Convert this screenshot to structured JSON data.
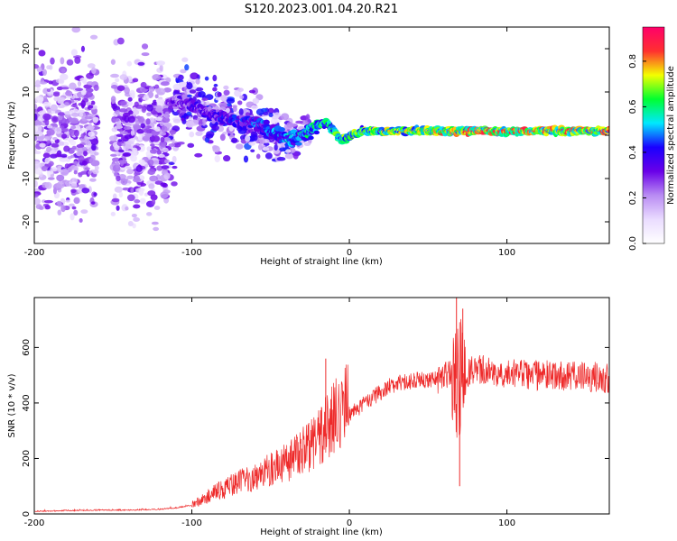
{
  "figure": {
    "title": "S120.2023.001.04.20.R21"
  },
  "colors": {
    "colormap": [
      "#ffffff",
      "#eadcff",
      "#b98cf3",
      "#6a00e8",
      "#1a00ff",
      "#00e8ff",
      "#00ff30",
      "#f4ff00",
      "#ff3030",
      "#ff006a"
    ],
    "snr_line": "#ee2a2a"
  },
  "chart_data": [
    {
      "type": "heatmap",
      "title": "",
      "xlabel": "Height of straight line (km)",
      "ylabel": "Frequency (Hz)",
      "xlim": [
        -200,
        165
      ],
      "ylim": [
        -25,
        25
      ],
      "x_ticks": [
        -200,
        -100,
        0,
        100
      ],
      "x_tick_labels": [
        "-200",
        "-100",
        "0",
        "100"
      ],
      "y_ticks": [
        20,
        10,
        0,
        -10,
        -20
      ],
      "y_tick_labels": [
        "20",
        "10",
        "0",
        "-10",
        "-20"
      ],
      "colorbar": {
        "label": "Normalized spectral amplitude",
        "range": [
          0,
          0.95
        ],
        "ticks": [
          0.0,
          0.2,
          0.4,
          0.6,
          0.8
        ],
        "tick_labels": [
          "0.0",
          "0.2",
          "0.4",
          "0.6",
          "0.8"
        ]
      },
      "ridge": {
        "x": [
          -160,
          -140,
          -120,
          -110,
          -100,
          -90,
          -80,
          -70,
          -60,
          -50,
          -40,
          -35,
          -30,
          -25,
          -20,
          -15,
          -12,
          -8,
          -5,
          0,
          10,
          20,
          40,
          60,
          80,
          100,
          120,
          140,
          165
        ],
        "y": [
          8,
          7,
          7,
          8,
          7,
          5,
          4,
          3,
          3,
          1,
          -1,
          -1,
          0,
          1,
          2,
          3,
          2,
          0,
          -1,
          0,
          1,
          1,
          1,
          1,
          1,
          1,
          1,
          1,
          1
        ],
        "amplitude": [
          0.2,
          0.2,
          0.3,
          0.35,
          0.4,
          0.4,
          0.45,
          0.45,
          0.5,
          0.55,
          0.6,
          0.6,
          0.62,
          0.65,
          0.68,
          0.7,
          0.7,
          0.7,
          0.72,
          0.72,
          0.75,
          0.78,
          0.82,
          0.85,
          0.88,
          0.9,
          0.9,
          0.9,
          0.85
        ]
      }
    },
    {
      "type": "line",
      "title": "",
      "xlabel": "Height of straight line (km)",
      "ylabel": "SNR (10 * v/v)",
      "xlim": [
        -200,
        165
      ],
      "ylim": [
        0,
        780
      ],
      "x_ticks": [
        -200,
        -100,
        0,
        100
      ],
      "x_tick_labels": [
        "-200",
        "-100",
        "0",
        "100"
      ],
      "y_ticks": [
        0,
        200,
        400,
        600
      ],
      "y_tick_labels": [
        "0",
        "200",
        "400",
        "600"
      ],
      "series": [
        {
          "x": [
            -200,
            -180,
            -160,
            -140,
            -120,
            -110,
            -100,
            -95,
            -90,
            -85,
            -80,
            -75,
            -70,
            -65,
            -60,
            -55,
            -50,
            -45,
            -40,
            -35,
            -30,
            -25,
            -20,
            -15,
            -10,
            -5,
            0,
            5,
            10,
            15,
            20,
            25,
            30,
            40,
            50,
            60,
            65,
            70,
            75,
            80,
            90,
            100,
            110,
            120,
            130,
            140,
            150,
            165
          ],
          "y": [
            8,
            10,
            12,
            12,
            15,
            20,
            30,
            40,
            55,
            70,
            80,
            90,
            100,
            110,
            120,
            130,
            140,
            150,
            165,
            180,
            200,
            220,
            240,
            270,
            300,
            330,
            360,
            380,
            400,
            420,
            440,
            460,
            470,
            480,
            485,
            490,
            500,
            480,
            510,
            520,
            515,
            510,
            505,
            500,
            500,
            495,
            495,
            490
          ]
        }
      ],
      "annotations": {
        "peaks": [
          {
            "x": -15,
            "y": 560
          },
          {
            "x": 68,
            "y": 780
          },
          {
            "x": 72,
            "y": 740
          }
        ],
        "dips": [
          {
            "x": 70,
            "y": 100
          }
        ]
      }
    }
  ]
}
